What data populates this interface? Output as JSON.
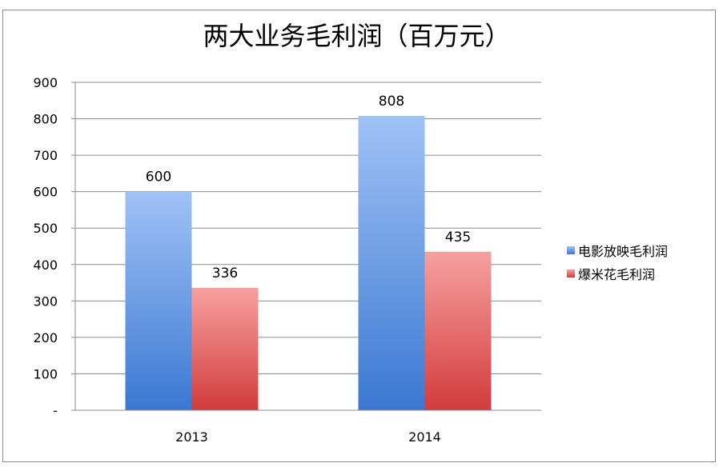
{
  "chart_data": {
    "type": "bar",
    "title": "两大业务毛利润（百万元）",
    "categories": [
      "2013",
      "2014"
    ],
    "series": [
      {
        "name": "电影放映毛利润",
        "values": [
          600,
          808
        ],
        "color_top": "#9fc2f5",
        "color_bottom": "#3b78d2"
      },
      {
        "name": "爆米花毛利润",
        "values": [
          336,
          435
        ],
        "color_top": "#f6a0a0",
        "color_bottom": "#d23c3c"
      }
    ],
    "ylim": [
      0,
      900
    ],
    "yticks": [
      0,
      100,
      200,
      300,
      400,
      500,
      600,
      700,
      800,
      900
    ],
    "ytick_labels": [
      "-",
      "100",
      "200",
      "300",
      "400",
      "500",
      "600",
      "700",
      "800",
      "900"
    ],
    "grid": true,
    "legend": "right",
    "data_labels": true
  }
}
